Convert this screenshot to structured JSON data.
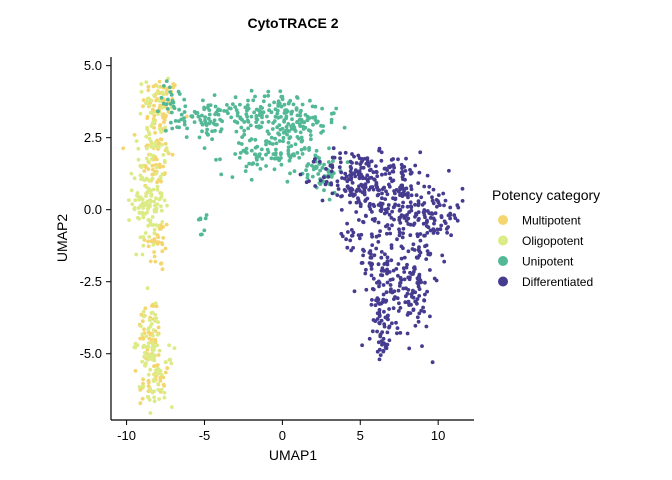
{
  "chart_data": {
    "type": "scatter",
    "title": "CytoTRACE 2",
    "xlabel": "UMAP1",
    "ylabel": "UMAP2",
    "xlim": [
      -11,
      12.3
    ],
    "ylim": [
      -7.3,
      5.3
    ],
    "xticks": [
      -10,
      -5,
      0,
      5,
      10
    ],
    "yticks": [
      -5.0,
      -2.5,
      0.0,
      2.5,
      5.0
    ],
    "xtick_labels": [
      "-10",
      "-5",
      "0",
      "5",
      "10"
    ],
    "ytick_labels": [
      "-5.0",
      "-2.5",
      "0.0",
      "2.5",
      "5.0"
    ],
    "grid": false,
    "legend_position": "right",
    "legend_title": "Potency category",
    "series": [
      {
        "name": "Multipotent",
        "color": "#F5D66E",
        "clusters": [
          {
            "cx": -7.8,
            "cy": 3.6,
            "sx": 0.6,
            "sy": 0.5,
            "n": 70
          },
          {
            "cx": -8.2,
            "cy": 1.8,
            "sx": 0.5,
            "sy": 0.7,
            "n": 50
          },
          {
            "cx": -8.0,
            "cy": -1.2,
            "sx": 0.4,
            "sy": 0.5,
            "n": 30
          },
          {
            "cx": -8.5,
            "cy": -4.2,
            "sx": 0.4,
            "sy": 0.6,
            "n": 35
          },
          {
            "cx": -8.2,
            "cy": -6.0,
            "sx": 0.5,
            "sy": 0.4,
            "n": 30
          }
        ]
      },
      {
        "name": "Oligopotent",
        "color": "#DCEB85",
        "clusters": [
          {
            "cx": -8.6,
            "cy": 0.3,
            "sx": 0.5,
            "sy": 0.8,
            "n": 110
          },
          {
            "cx": -8.3,
            "cy": 2.8,
            "sx": 0.5,
            "sy": 0.9,
            "n": 55
          },
          {
            "cx": -8.6,
            "cy": -4.5,
            "sx": 0.4,
            "sy": 0.7,
            "n": 50
          },
          {
            "cx": -8.0,
            "cy": -5.8,
            "sx": 0.5,
            "sy": 0.5,
            "n": 45
          }
        ]
      },
      {
        "name": "Unipotent",
        "color": "#52B896",
        "clusters": [
          {
            "cx": -5.0,
            "cy": 3.1,
            "sx": 1.2,
            "sy": 0.35,
            "n": 70
          },
          {
            "cx": -1.2,
            "cy": 3.4,
            "sx": 1.5,
            "sy": 0.35,
            "n": 110
          },
          {
            "cx": 0.8,
            "cy": 2.8,
            "sx": 1.3,
            "sy": 0.45,
            "n": 90
          },
          {
            "cx": -1.0,
            "cy": 1.9,
            "sx": 1.4,
            "sy": 0.35,
            "n": 80
          },
          {
            "cx": 2.2,
            "cy": 1.4,
            "sx": 0.9,
            "sy": 0.4,
            "n": 50
          },
          {
            "cx": -7.0,
            "cy": 3.9,
            "sx": 0.4,
            "sy": 0.5,
            "n": 20
          },
          {
            "cx": -5.2,
            "cy": -0.3,
            "sx": 0.15,
            "sy": 0.4,
            "n": 8
          }
        ]
      },
      {
        "name": "Differentiated",
        "color": "#453B8F",
        "clusters": [
          {
            "cx": 4.6,
            "cy": 1.1,
            "sx": 1.1,
            "sy": 0.5,
            "n": 130
          },
          {
            "cx": 7.0,
            "cy": 0.6,
            "sx": 1.3,
            "sy": 0.7,
            "n": 170
          },
          {
            "cx": 9.6,
            "cy": -0.2,
            "sx": 1.0,
            "sy": 0.6,
            "n": 110
          },
          {
            "cx": 6.2,
            "cy": -1.9,
            "sx": 0.8,
            "sy": 0.8,
            "n": 90
          },
          {
            "cx": 8.4,
            "cy": -2.7,
            "sx": 0.6,
            "sy": 0.9,
            "n": 100
          },
          {
            "cx": 6.6,
            "cy": -3.6,
            "sx": 0.5,
            "sy": 0.6,
            "n": 50
          },
          {
            "cx": 6.5,
            "cy": -4.8,
            "sx": 0.25,
            "sy": 0.3,
            "n": 20
          },
          {
            "cx": 4.3,
            "cy": -0.9,
            "sx": 0.3,
            "sy": 0.3,
            "n": 12
          }
        ]
      }
    ]
  }
}
